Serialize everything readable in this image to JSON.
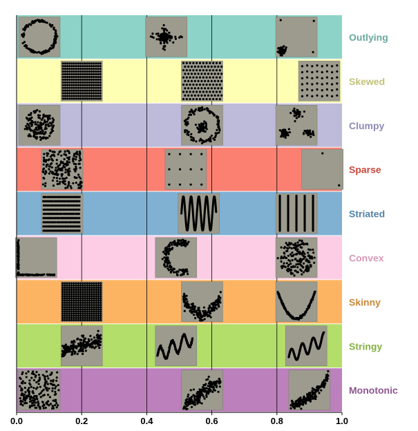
{
  "chart_data": {
    "type": "scatter",
    "title": "",
    "xlabel": "",
    "ylabel": "",
    "xlim": [
      0.0,
      1.0
    ],
    "x_ticks": [
      0.0,
      0.2,
      0.4,
      0.6,
      0.8,
      1.0
    ],
    "x_tick_labels": [
      "0.0",
      "0.2",
      "0.4",
      "0.6",
      "0.8",
      "1.0"
    ],
    "vertical_gridlines": [
      0.2,
      0.4,
      0.6,
      0.8
    ],
    "thumbnail_background": "#9c9b8e",
    "point_color": "#000000",
    "rows": [
      {
        "label": "Outlying",
        "color": "#8dd3c7",
        "label_color": "#6aa99e",
        "thumbnails": [
          {
            "x": 0.07,
            "pattern": "ring"
          },
          {
            "x": 0.46,
            "pattern": "central-burst"
          },
          {
            "x": 0.86,
            "pattern": "corner-outliers"
          }
        ]
      },
      {
        "label": "Skewed",
        "color": "#ffffb3",
        "label_color": "#c2c27a",
        "thumbnails": [
          {
            "x": 0.2,
            "pattern": "dense-grid"
          },
          {
            "x": 0.57,
            "pattern": "hex-lattice"
          },
          {
            "x": 0.93,
            "pattern": "sparse-grid"
          }
        ]
      },
      {
        "label": "Clumpy",
        "color": "#bebada",
        "label_color": "#8e8ab5",
        "thumbnails": [
          {
            "x": 0.07,
            "pattern": "blob"
          },
          {
            "x": 0.57,
            "pattern": "ring-with-center"
          },
          {
            "x": 0.86,
            "pattern": "three-clusters"
          }
        ]
      },
      {
        "label": "Sparse",
        "color": "#fb8072",
        "label_color": "#c9473c",
        "thumbnails": [
          {
            "x": 0.14,
            "pattern": "uniform-random"
          },
          {
            "x": 0.52,
            "pattern": "few-points-grid"
          },
          {
            "x": 0.94,
            "pattern": "two-points"
          }
        ]
      },
      {
        "label": "Striated",
        "color": "#80b1d3",
        "label_color": "#4f83a8",
        "thumbnails": [
          {
            "x": 0.14,
            "pattern": "horizontal-stripes"
          },
          {
            "x": 0.56,
            "pattern": "sine-wave"
          },
          {
            "x": 0.86,
            "pattern": "vertical-lines"
          }
        ]
      },
      {
        "label": "Convex",
        "color": "#fccde5",
        "label_color": "#d79ab8",
        "thumbnails": [
          {
            "x": 0.06,
            "pattern": "l-shape"
          },
          {
            "x": 0.49,
            "pattern": "crescent"
          },
          {
            "x": 0.86,
            "pattern": "filled-disk"
          }
        ]
      },
      {
        "label": "Skinny",
        "color": "#fdb462",
        "label_color": "#c98838",
        "thumbnails": [
          {
            "x": 0.2,
            "pattern": "dense-grid-full"
          },
          {
            "x": 0.57,
            "pattern": "noisy-parabola"
          },
          {
            "x": 0.86,
            "pattern": "thin-parabola"
          }
        ]
      },
      {
        "label": "Stringy",
        "color": "#b3de69",
        "label_color": "#86b043",
        "thumbnails": [
          {
            "x": 0.2,
            "pattern": "noisy-rising-band"
          },
          {
            "x": 0.49,
            "pattern": "rising-wave"
          },
          {
            "x": 0.89,
            "pattern": "rising-wave-thin"
          }
        ]
      },
      {
        "label": "Monotonic",
        "color": "#bc80bd",
        "label_color": "#8e548f",
        "thumbnails": [
          {
            "x": 0.07,
            "pattern": "uniform-random"
          },
          {
            "x": 0.57,
            "pattern": "positive-correlation"
          },
          {
            "x": 0.9,
            "pattern": "curved-increasing"
          }
        ]
      }
    ]
  }
}
